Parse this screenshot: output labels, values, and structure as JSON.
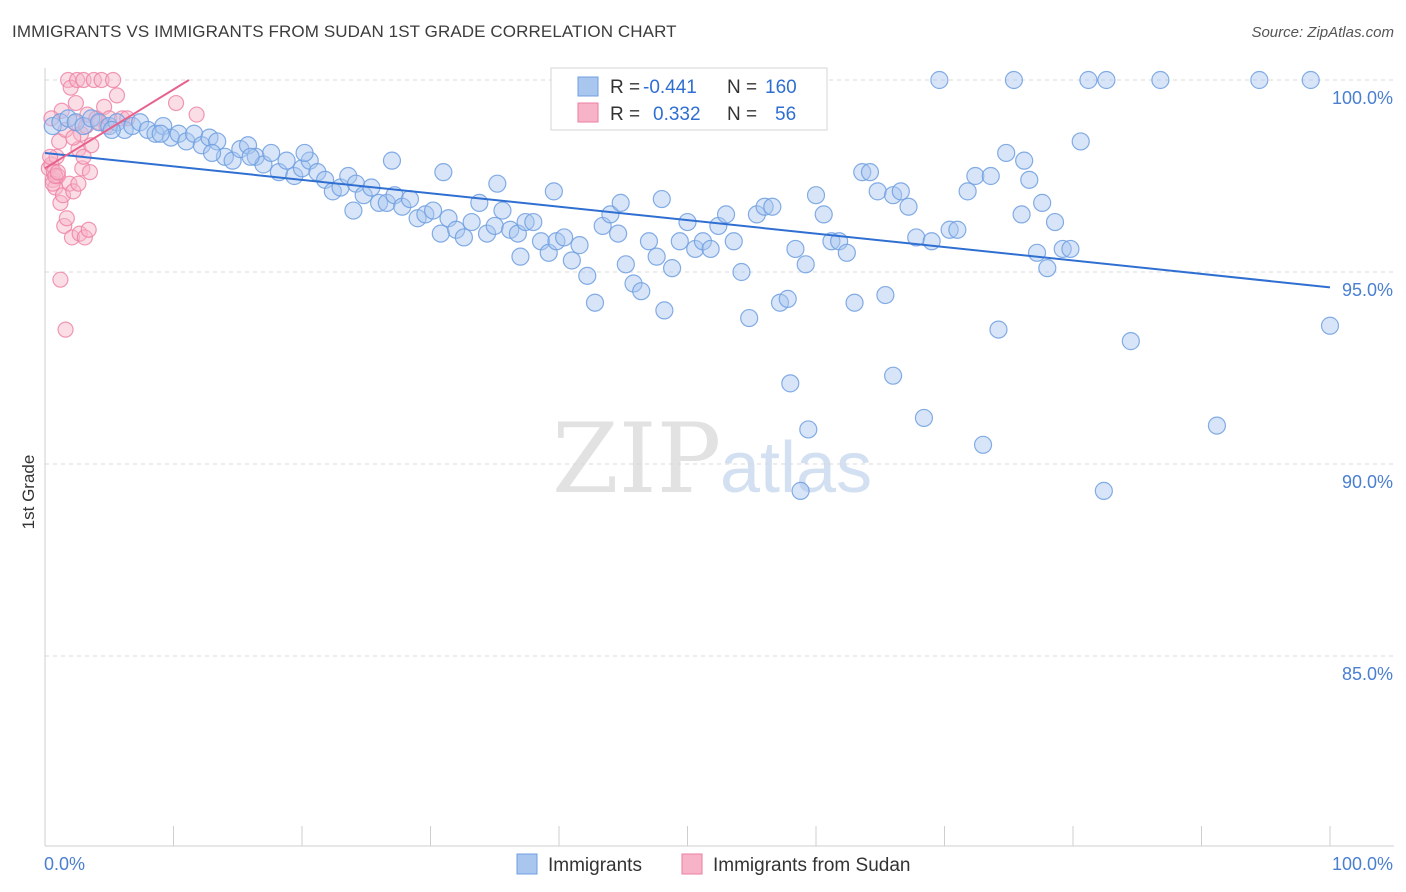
{
  "title": "IMMIGRANTS VS IMMIGRANTS FROM SUDAN 1ST GRADE CORRELATION CHART",
  "source": "Source: ZipAtlas.com",
  "watermark": {
    "zip": "ZIP",
    "atlas": "atlas"
  },
  "colors": {
    "blue_fill": "#a9c6ef",
    "blue_stroke": "#6f9fe0",
    "blue_line": "#2f6fd1",
    "pink_fill": "#f7b3c8",
    "pink_stroke": "#ee7fa3",
    "pink_line": "#e8608c",
    "grid": "#d8d8d8",
    "axis_text": "#4a7fd0"
  },
  "legend": {
    "row1": {
      "r_label": "R =",
      "r_value": "-0.441",
      "n_label": "N =",
      "n_value": "160"
    },
    "row2": {
      "r_label": "R =",
      "r_value": "0.332",
      "n_label": "N =",
      "n_value": "56"
    }
  },
  "bottom_legend": [
    "Immigrants",
    "Immigrants from Sudan"
  ],
  "chart_data": {
    "type": "scatter",
    "title": "IMMIGRANTS VS IMMIGRANTS FROM SUDAN 1ST GRADE CORRELATION CHART",
    "xlabel": "",
    "ylabel": "1st Grade",
    "xlim": [
      0,
      100
    ],
    "ylim": [
      80.5,
      100.5
    ],
    "x_tick_labels": [
      "0.0%",
      "100.0%"
    ],
    "y_ticks": [
      85,
      90,
      95,
      100
    ],
    "y_tick_labels": [
      "85.0%",
      "90.0%",
      "95.0%",
      "100.0%"
    ],
    "series": [
      {
        "name": "Immigrants",
        "R": -0.441,
        "N": 160,
        "trend": [
          [
            0,
            98.1
          ],
          [
            100,
            94.6
          ]
        ],
        "points": [
          [
            0.6,
            98.8
          ],
          [
            1.2,
            98.9
          ],
          [
            1.8,
            99.0
          ],
          [
            2.4,
            98.9
          ],
          [
            3.0,
            98.8
          ],
          [
            3.6,
            99.0
          ],
          [
            4.2,
            98.9
          ],
          [
            5.0,
            98.8
          ],
          [
            5.6,
            98.9
          ],
          [
            6.2,
            98.7
          ],
          [
            6.8,
            98.8
          ],
          [
            7.4,
            98.9
          ],
          [
            8.0,
            98.7
          ],
          [
            8.6,
            98.6
          ],
          [
            9.2,
            98.8
          ],
          [
            9.8,
            98.5
          ],
          [
            10.4,
            98.6
          ],
          [
            11.0,
            98.4
          ],
          [
            11.6,
            98.6
          ],
          [
            12.2,
            98.3
          ],
          [
            12.8,
            98.5
          ],
          [
            13.4,
            98.4
          ],
          [
            14.0,
            98.0
          ],
          [
            14.6,
            97.9
          ],
          [
            15.2,
            98.2
          ],
          [
            15.8,
            98.3
          ],
          [
            16.4,
            98.0
          ],
          [
            17.0,
            97.8
          ],
          [
            17.6,
            98.1
          ],
          [
            18.2,
            97.6
          ],
          [
            18.8,
            97.9
          ],
          [
            19.4,
            97.5
          ],
          [
            20.0,
            97.7
          ],
          [
            20.6,
            97.9
          ],
          [
            21.2,
            97.6
          ],
          [
            21.8,
            97.4
          ],
          [
            22.4,
            97.1
          ],
          [
            23.0,
            97.2
          ],
          [
            23.6,
            97.5
          ],
          [
            24.2,
            97.3
          ],
          [
            24.8,
            97.0
          ],
          [
            25.4,
            97.2
          ],
          [
            26.0,
            96.8
          ],
          [
            26.6,
            96.8
          ],
          [
            27.2,
            97.0
          ],
          [
            27.8,
            96.7
          ],
          [
            28.4,
            96.9
          ],
          [
            29.0,
            96.4
          ],
          [
            29.6,
            96.5
          ],
          [
            30.2,
            96.6
          ],
          [
            30.8,
            96.0
          ],
          [
            31.4,
            96.4
          ],
          [
            32.0,
            96.1
          ],
          [
            32.6,
            95.9
          ],
          [
            33.2,
            96.3
          ],
          [
            33.8,
            96.8
          ],
          [
            34.4,
            96.0
          ],
          [
            35.0,
            96.2
          ],
          [
            35.6,
            96.6
          ],
          [
            36.2,
            96.1
          ],
          [
            36.8,
            96.0
          ],
          [
            37.4,
            96.3
          ],
          [
            38.0,
            96.3
          ],
          [
            38.6,
            95.8
          ],
          [
            39.2,
            95.5
          ],
          [
            39.8,
            95.8
          ],
          [
            40.4,
            95.9
          ],
          [
            41.0,
            95.3
          ],
          [
            41.6,
            95.7
          ],
          [
            42.2,
            94.9
          ],
          [
            42.8,
            94.2
          ],
          [
            43.4,
            96.2
          ],
          [
            44.0,
            96.5
          ],
          [
            44.6,
            96.0
          ],
          [
            45.2,
            95.2
          ],
          [
            45.8,
            94.7
          ],
          [
            46.4,
            94.5
          ],
          [
            47.0,
            95.8
          ],
          [
            47.6,
            95.4
          ],
          [
            48.2,
            94.0
          ],
          [
            48.8,
            95.1
          ],
          [
            49.4,
            95.8
          ],
          [
            50.0,
            96.3
          ],
          [
            50.6,
            95.6
          ],
          [
            51.2,
            95.8
          ],
          [
            51.8,
            95.6
          ],
          [
            52.4,
            96.2
          ],
          [
            53.0,
            96.5
          ],
          [
            53.6,
            95.8
          ],
          [
            54.2,
            95.0
          ],
          [
            54.8,
            93.8
          ],
          [
            55.4,
            96.5
          ],
          [
            56.0,
            96.7
          ],
          [
            56.6,
            96.7
          ],
          [
            57.2,
            94.2
          ],
          [
            57.8,
            94.3
          ],
          [
            58.4,
            95.6
          ],
          [
            58.8,
            89.3
          ],
          [
            59.4,
            90.9
          ],
          [
            60.0,
            97.0
          ],
          [
            60.6,
            96.5
          ],
          [
            61.2,
            95.8
          ],
          [
            61.8,
            95.8
          ],
          [
            62.4,
            95.5
          ],
          [
            63.0,
            94.2
          ],
          [
            63.6,
            97.6
          ],
          [
            64.2,
            97.6
          ],
          [
            64.8,
            97.1
          ],
          [
            65.4,
            94.4
          ],
          [
            66.0,
            97.0
          ],
          [
            66.6,
            97.1
          ],
          [
            67.2,
            96.7
          ],
          [
            67.8,
            95.9
          ],
          [
            68.4,
            91.2
          ],
          [
            69.0,
            95.8
          ],
          [
            69.6,
            100.0
          ],
          [
            70.4,
            96.1
          ],
          [
            71.0,
            96.1
          ],
          [
            71.8,
            97.1
          ],
          [
            72.4,
            97.5
          ],
          [
            73.0,
            90.5
          ],
          [
            73.6,
            97.5
          ],
          [
            74.2,
            93.5
          ],
          [
            74.8,
            98.1
          ],
          [
            75.4,
            100.0
          ],
          [
            76.0,
            96.5
          ],
          [
            76.6,
            97.4
          ],
          [
            77.2,
            95.5
          ],
          [
            77.6,
            96.8
          ],
          [
            78.0,
            95.1
          ],
          [
            78.6,
            96.3
          ],
          [
            79.2,
            95.6
          ],
          [
            79.8,
            95.6
          ],
          [
            80.6,
            98.4
          ],
          [
            81.2,
            100.0
          ],
          [
            82.4,
            89.3
          ],
          [
            82.6,
            100.0
          ],
          [
            84.5,
            93.2
          ],
          [
            86.8,
            100.0
          ],
          [
            91.2,
            91.0
          ],
          [
            94.5,
            100.0
          ],
          [
            98.5,
            100.0
          ],
          [
            100.0,
            93.6
          ],
          [
            59.2,
            95.2
          ],
          [
            37.0,
            95.4
          ],
          [
            24.0,
            96.6
          ],
          [
            48.0,
            96.9
          ],
          [
            58.0,
            92.1
          ],
          [
            66.0,
            92.3
          ],
          [
            76.2,
            97.9
          ],
          [
            5.2,
            98.7
          ],
          [
            9.0,
            98.6
          ],
          [
            13.0,
            98.1
          ],
          [
            16.0,
            98.0
          ],
          [
            20.2,
            98.1
          ],
          [
            27.0,
            97.9
          ],
          [
            31.0,
            97.6
          ],
          [
            35.2,
            97.3
          ],
          [
            39.6,
            97.1
          ],
          [
            44.8,
            96.8
          ]
        ]
      },
      {
        "name": "Immigrants from Sudan",
        "R": 0.332,
        "N": 56,
        "trend": [
          [
            0,
            97.7
          ],
          [
            11.2,
            100.0
          ]
        ],
        "points": [
          [
            0.3,
            97.7
          ],
          [
            0.5,
            97.8
          ],
          [
            0.6,
            97.4
          ],
          [
            0.7,
            97.6
          ],
          [
            0.8,
            97.2
          ],
          [
            0.9,
            98.0
          ],
          [
            1.0,
            97.5
          ],
          [
            1.1,
            98.4
          ],
          [
            1.2,
            96.8
          ],
          [
            1.3,
            99.2
          ],
          [
            1.4,
            97.0
          ],
          [
            1.5,
            96.2
          ],
          [
            1.6,
            98.7
          ],
          [
            1.7,
            96.4
          ],
          [
            1.8,
            100.0
          ],
          [
            1.9,
            97.3
          ],
          [
            2.0,
            99.8
          ],
          [
            2.1,
            95.9
          ],
          [
            2.2,
            97.1
          ],
          [
            2.3,
            98.9
          ],
          [
            2.4,
            99.4
          ],
          [
            2.5,
            100.0
          ],
          [
            2.6,
            98.2
          ],
          [
            2.7,
            96.0
          ],
          [
            2.8,
            98.6
          ],
          [
            2.9,
            97.7
          ],
          [
            3.0,
            100.0
          ],
          [
            3.1,
            95.9
          ],
          [
            3.2,
            98.8
          ],
          [
            3.3,
            99.1
          ],
          [
            3.4,
            96.1
          ],
          [
            3.5,
            97.6
          ],
          [
            3.6,
            98.3
          ],
          [
            3.8,
            100.0
          ],
          [
            4.0,
            99.0
          ],
          [
            4.2,
            98.9
          ],
          [
            4.4,
            100.0
          ],
          [
            4.6,
            99.3
          ],
          [
            4.8,
            98.8
          ],
          [
            5.0,
            99.0
          ],
          [
            5.3,
            100.0
          ],
          [
            5.6,
            99.6
          ],
          [
            6.0,
            99.0
          ],
          [
            6.4,
            99.0
          ],
          [
            0.4,
            98.0
          ],
          [
            0.6,
            97.3
          ],
          [
            0.8,
            97.5
          ],
          [
            1.0,
            97.6
          ],
          [
            1.2,
            94.8
          ],
          [
            1.6,
            93.5
          ],
          [
            2.2,
            98.5
          ],
          [
            2.6,
            97.3
          ],
          [
            3.0,
            98.0
          ],
          [
            10.2,
            99.4
          ],
          [
            11.8,
            99.1
          ],
          [
            0.5,
            99.0
          ]
        ]
      }
    ]
  }
}
